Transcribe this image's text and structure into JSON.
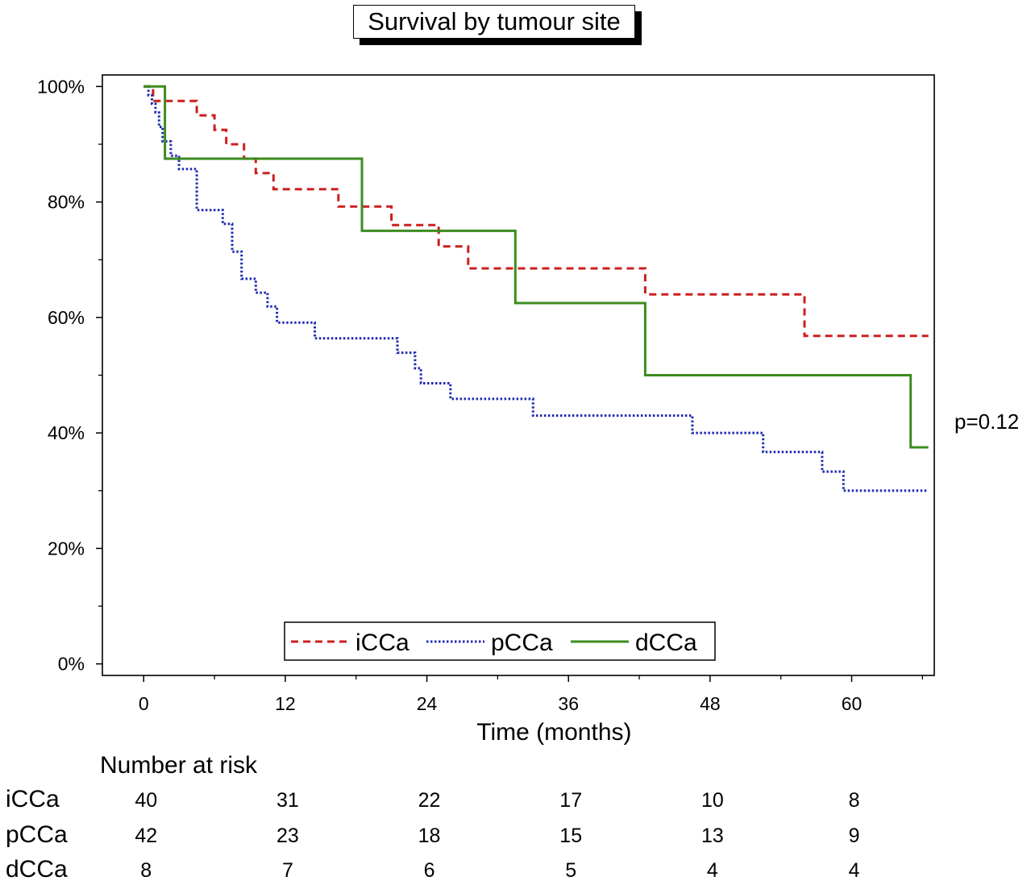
{
  "chart_data": {
    "type": "line",
    "step": true,
    "title": "Survival by tumour site",
    "xlabel": "Time (months)",
    "ylabel": "",
    "xlim": [
      -3.5,
      67
    ],
    "ylim": [
      -2,
      102
    ],
    "x_ticks": [
      0,
      12,
      24,
      36,
      48,
      60
    ],
    "x_tick_labels": [
      "0",
      "12",
      "24",
      "36",
      "48",
      "60"
    ],
    "y_ticks": [
      0,
      20,
      40,
      60,
      80,
      100
    ],
    "y_tick_labels": [
      "0%",
      "20%",
      "40%",
      "60%",
      "80%",
      "100%"
    ],
    "annotation": "p=0.12",
    "legend_position": "bottom-center",
    "series": [
      {
        "name": "iCCa",
        "color": "#cc1f1f",
        "dash": "dashed",
        "x": [
          0,
          0.8,
          4.5,
          6.0,
          7.0,
          8.5,
          9.5,
          11.0,
          16.5,
          21.0,
          25.0,
          27.5,
          42.5,
          56.0,
          66.5
        ],
        "y": [
          100,
          97.5,
          95.0,
          92.5,
          90.0,
          87.5,
          85.0,
          82.2,
          79.2,
          76.0,
          72.3,
          68.5,
          64.0,
          56.8,
          56.8
        ]
      },
      {
        "name": "pCCa",
        "color": "#1f2bb0",
        "dash": "dotted",
        "x": [
          0,
          0.4,
          0.7,
          1.0,
          1.3,
          1.6,
          2.3,
          3.0,
          4.5,
          6.7,
          7.5,
          8.3,
          9.5,
          10.5,
          11.3,
          12.0,
          14.5,
          21.5,
          23.0,
          23.5,
          26.0,
          33.0,
          46.5,
          52.5,
          57.5,
          59.3,
          66.5
        ],
        "y": [
          100,
          98.5,
          97.0,
          95.5,
          93.0,
          90.5,
          88.0,
          85.7,
          78.6,
          76.2,
          71.4,
          66.7,
          64.3,
          61.9,
          59.1,
          59.1,
          56.4,
          53.9,
          51.2,
          48.6,
          45.9,
          43.0,
          40.0,
          36.7,
          33.3,
          30.0,
          30.0
        ]
      },
      {
        "name": "dCCa",
        "color": "#3d8c1f",
        "dash": "solid",
        "x": [
          0,
          1.8,
          18.5,
          31.5,
          42.5,
          65.0,
          66.5
        ],
        "y": [
          100,
          87.5,
          75.0,
          62.5,
          50.0,
          37.5,
          37.5
        ]
      }
    ],
    "risk_table": {
      "title": "Number at risk",
      "time_points": [
        0,
        12,
        24,
        36,
        48,
        60
      ],
      "rows": [
        {
          "name": "iCCa",
          "values": [
            "40",
            "31",
            "22",
            "17",
            "10",
            "8"
          ]
        },
        {
          "name": "pCCa",
          "values": [
            "42",
            "23",
            "18",
            "15",
            "13",
            "9"
          ]
        },
        {
          "name": "dCCa",
          "values": [
            "8",
            "7",
            "6",
            "5",
            "4",
            "4"
          ]
        }
      ]
    }
  }
}
